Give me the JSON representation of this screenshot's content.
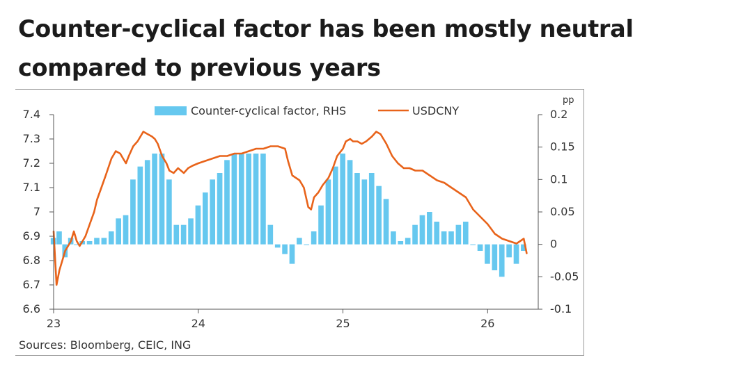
{
  "title": "Counter-cyclical factor has been mostly neutral compared to previous years",
  "source": "Sources: Bloomberg, CEIC, ING",
  "colors": {
    "bars": "#66c8ef",
    "line": "#e8631a",
    "axis": "#555555",
    "frame": "#9a9a9a"
  },
  "chart_data": {
    "type": "bar+line",
    "x_axis": {
      "ticks": [
        "23",
        "24",
        "25",
        "26"
      ],
      "range": [
        23,
        26.35
      ]
    },
    "left_axis": {
      "ylim": [
        6.6,
        7.4
      ],
      "ticks": [
        "7.4",
        "7.3",
        "7.2",
        "7.1",
        "7",
        "6.9",
        "6.8",
        "6.7",
        "6.6"
      ]
    },
    "right_axis": {
      "label": "pp",
      "ylim": [
        -0.1,
        0.2
      ],
      "ticks": [
        "0.2",
        "0.15",
        "0.1",
        "0.05",
        "0",
        "-0.05",
        "-0.1"
      ]
    },
    "legend": [
      "Counter-cyclical factor, RHS",
      "USDCNY"
    ],
    "series": [
      {
        "name": "Counter-cyclical factor, RHS",
        "kind": "bar",
        "axis": "right",
        "x": [
          23.0,
          23.04,
          23.08,
          23.12,
          23.16,
          23.2,
          23.25,
          23.3,
          23.35,
          23.4,
          23.45,
          23.5,
          23.55,
          23.6,
          23.65,
          23.7,
          23.75,
          23.8,
          23.85,
          23.9,
          23.95,
          24.0,
          24.05,
          24.1,
          24.15,
          24.2,
          24.25,
          24.3,
          24.35,
          24.4,
          24.45,
          24.5,
          24.55,
          24.6,
          24.65,
          24.7,
          24.75,
          24.8,
          24.85,
          24.9,
          24.95,
          25.0,
          25.05,
          25.1,
          25.15,
          25.2,
          25.25,
          25.3,
          25.35,
          25.4,
          25.45,
          25.5,
          25.55,
          25.6,
          25.65,
          25.7,
          25.75,
          25.8,
          25.85,
          25.9,
          25.95,
          26.0,
          26.05,
          26.1,
          26.15,
          26.2,
          26.25
        ],
        "values": [
          0.01,
          0.02,
          -0.02,
          0.01,
          0.0,
          0.005,
          0.005,
          0.01,
          0.01,
          0.02,
          0.04,
          0.045,
          0.1,
          0.12,
          0.13,
          0.14,
          0.14,
          0.1,
          0.03,
          0.03,
          0.04,
          0.06,
          0.08,
          0.1,
          0.11,
          0.13,
          0.14,
          0.14,
          0.14,
          0.14,
          0.14,
          0.03,
          -0.005,
          -0.015,
          -0.03,
          0.01,
          0.0,
          0.02,
          0.06,
          0.1,
          0.12,
          0.14,
          0.13,
          0.11,
          0.1,
          0.11,
          0.09,
          0.07,
          0.02,
          0.005,
          0.01,
          0.03,
          0.045,
          0.05,
          0.035,
          0.02,
          0.02,
          0.03,
          0.035,
          0.0,
          -0.01,
          -0.03,
          -0.04,
          -0.05,
          -0.02,
          -0.03,
          -0.01
        ]
      },
      {
        "name": "USDCNY",
        "kind": "line",
        "axis": "left",
        "x": [
          23.0,
          23.02,
          23.04,
          23.06,
          23.08,
          23.1,
          23.12,
          23.14,
          23.16,
          23.18,
          23.2,
          23.22,
          23.25,
          23.28,
          23.3,
          23.33,
          23.36,
          23.4,
          23.43,
          23.46,
          23.48,
          23.5,
          23.52,
          23.55,
          23.58,
          23.6,
          23.62,
          23.65,
          23.68,
          23.7,
          23.72,
          23.75,
          23.78,
          23.8,
          23.83,
          23.86,
          23.9,
          23.93,
          23.96,
          24.0,
          24.05,
          24.1,
          24.15,
          24.2,
          24.25,
          24.3,
          24.35,
          24.4,
          24.45,
          24.5,
          24.55,
          24.6,
          24.62,
          24.65,
          24.7,
          24.73,
          24.76,
          24.78,
          24.8,
          24.83,
          24.86,
          24.9,
          24.93,
          24.96,
          25.0,
          25.02,
          25.05,
          25.07,
          25.1,
          25.13,
          25.16,
          25.2,
          25.23,
          25.26,
          25.3,
          25.34,
          25.38,
          25.42,
          25.46,
          25.5,
          25.55,
          25.6,
          25.65,
          25.7,
          25.75,
          25.8,
          25.85,
          25.9,
          25.95,
          26.0,
          26.05,
          26.1,
          26.15,
          26.2,
          26.25,
          26.27
        ],
        "values": [
          6.92,
          6.7,
          6.76,
          6.8,
          6.84,
          6.86,
          6.88,
          6.92,
          6.88,
          6.86,
          6.88,
          6.9,
          6.95,
          7.0,
          7.05,
          7.1,
          7.15,
          7.22,
          7.25,
          7.24,
          7.22,
          7.2,
          7.23,
          7.27,
          7.29,
          7.31,
          7.33,
          7.32,
          7.31,
          7.3,
          7.28,
          7.23,
          7.2,
          7.17,
          7.16,
          7.18,
          7.16,
          7.18,
          7.19,
          7.2,
          7.21,
          7.22,
          7.23,
          7.23,
          7.24,
          7.24,
          7.25,
          7.26,
          7.26,
          7.27,
          7.27,
          7.26,
          7.21,
          7.15,
          7.13,
          7.1,
          7.02,
          7.01,
          7.06,
          7.08,
          7.11,
          7.14,
          7.18,
          7.23,
          7.26,
          7.29,
          7.3,
          7.29,
          7.29,
          7.28,
          7.29,
          7.31,
          7.33,
          7.32,
          7.28,
          7.23,
          7.2,
          7.18,
          7.18,
          7.17,
          7.17,
          7.15,
          7.13,
          7.12,
          7.1,
          7.08,
          7.06,
          7.01,
          6.98,
          6.95,
          6.91,
          6.89,
          6.88,
          6.87,
          6.89,
          6.83
        ]
      }
    ]
  }
}
